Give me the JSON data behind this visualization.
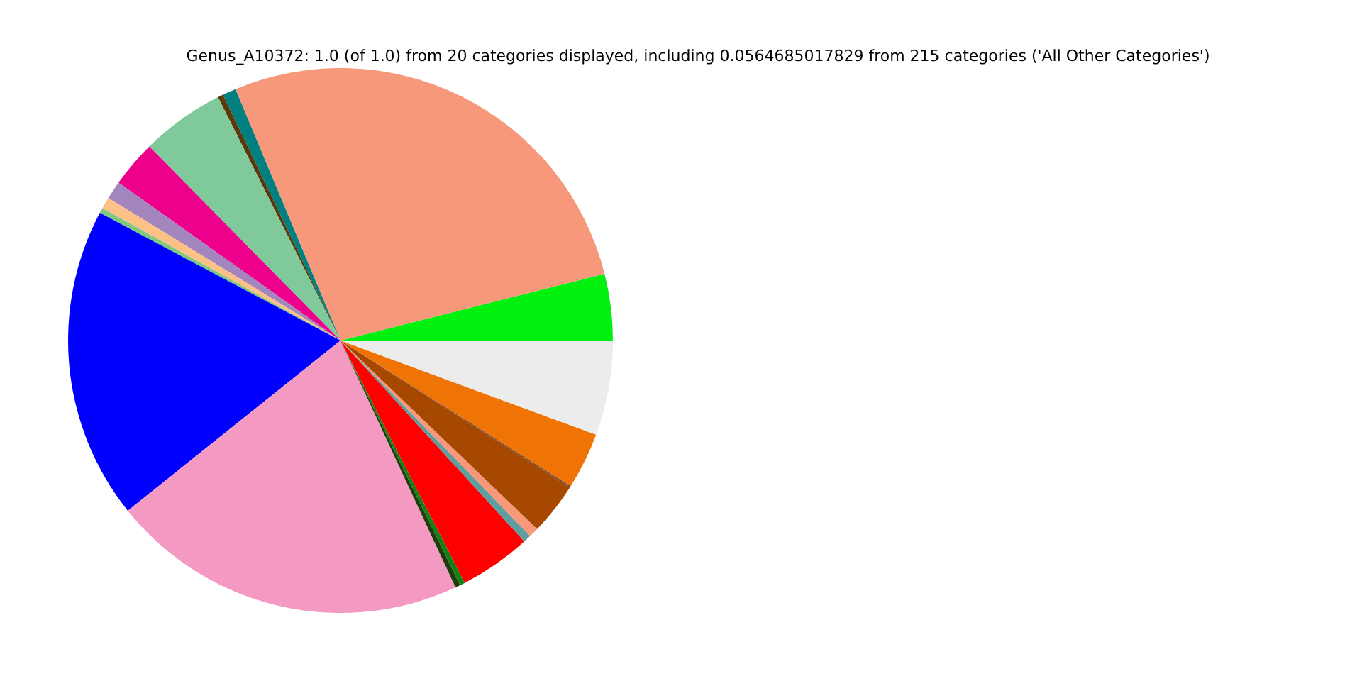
{
  "chart_data": {
    "type": "pie",
    "title": "Genus_A10372: 1.0 (of 1.0) from 20 categories displayed, including 0.0564685017829 from 215 categories ('All Other Categories')",
    "categories": [
      null,
      null,
      null,
      null,
      null,
      null,
      null,
      null,
      null,
      null,
      null,
      null,
      null,
      null,
      null,
      null,
      null,
      null,
      null,
      null
    ],
    "values": [
      3.94,
      27.36,
      0.8,
      0.33,
      4.95,
      2.78,
      1.08,
      0.69,
      0.31,
      18.5,
      21.2,
      0.3,
      0.3,
      4.25,
      0.47,
      0.58,
      3.08,
      0.1,
      3.36,
      5.62
    ],
    "colors": [
      "#00f00f",
      "#f7987a",
      "#008080",
      "#5a3a0a",
      "#80c99b",
      "#ec008c",
      "#a386be",
      "#fdc086",
      "#7fc97f",
      "#0000ff",
      "#f49ac2",
      "#1f3d0c",
      "#138015",
      "#ff0000",
      "#5f9ea0",
      "#f7987a",
      "#a64800",
      "#7a4a2a",
      "#f07305",
      "#ececec"
    ]
  }
}
